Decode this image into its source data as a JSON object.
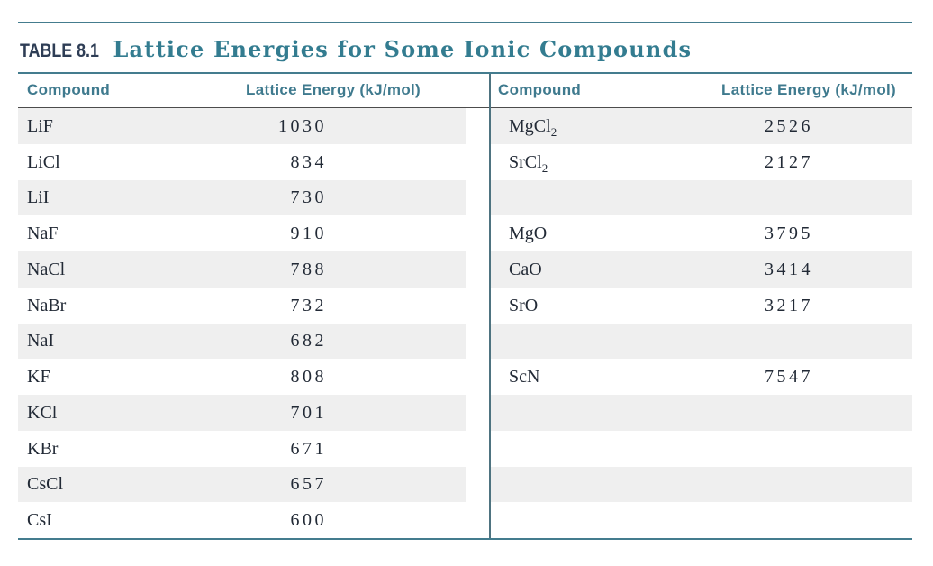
{
  "table": {
    "label": "TABLE 8.1",
    "title": "Lattice Energies for Some Ionic Compounds",
    "columns": {
      "compound": "Compound",
      "energy": "Lattice Energy (kJ/mol)"
    },
    "left_rows": [
      {
        "compound": "LiF",
        "sub": "",
        "energy": "1030"
      },
      {
        "compound": "LiCl",
        "sub": "",
        "energy": "834"
      },
      {
        "compound": "LiI",
        "sub": "",
        "energy": "730"
      },
      {
        "compound": "NaF",
        "sub": "",
        "energy": "910"
      },
      {
        "compound": "NaCl",
        "sub": "",
        "energy": "788"
      },
      {
        "compound": "NaBr",
        "sub": "",
        "energy": "732"
      },
      {
        "compound": "NaI",
        "sub": "",
        "energy": "682"
      },
      {
        "compound": "KF",
        "sub": "",
        "energy": "808"
      },
      {
        "compound": "KCl",
        "sub": "",
        "energy": "701"
      },
      {
        "compound": "KBr",
        "sub": "",
        "energy": "671"
      },
      {
        "compound": "CsCl",
        "sub": "",
        "energy": "657"
      },
      {
        "compound": "CsI",
        "sub": "",
        "energy": "600"
      }
    ],
    "right_rows": [
      {
        "compound": "MgCl",
        "sub": "2",
        "energy": "2526"
      },
      {
        "compound": "SrCl",
        "sub": "2",
        "energy": "2127"
      },
      {
        "compound": "",
        "sub": "",
        "energy": ""
      },
      {
        "compound": "MgO",
        "sub": "",
        "energy": "3795"
      },
      {
        "compound": "CaO",
        "sub": "",
        "energy": "3414"
      },
      {
        "compound": "SrO",
        "sub": "",
        "energy": "3217"
      },
      {
        "compound": "",
        "sub": "",
        "energy": ""
      },
      {
        "compound": "ScN",
        "sub": "",
        "energy": "7547"
      },
      {
        "compound": "",
        "sub": "",
        "energy": ""
      },
      {
        "compound": "",
        "sub": "",
        "energy": ""
      },
      {
        "compound": "",
        "sub": "",
        "energy": ""
      },
      {
        "compound": "",
        "sub": "",
        "energy": ""
      }
    ],
    "colors": {
      "teal_rule": "#447C8E",
      "title_teal": "#337C90",
      "label_navy": "#2E3D55",
      "header_text": "#3F7A8E",
      "body_text": "#222A36",
      "zebra": "#EFEFEF",
      "divider": "#4E7380",
      "header_underline": "#4C4C4C"
    }
  }
}
